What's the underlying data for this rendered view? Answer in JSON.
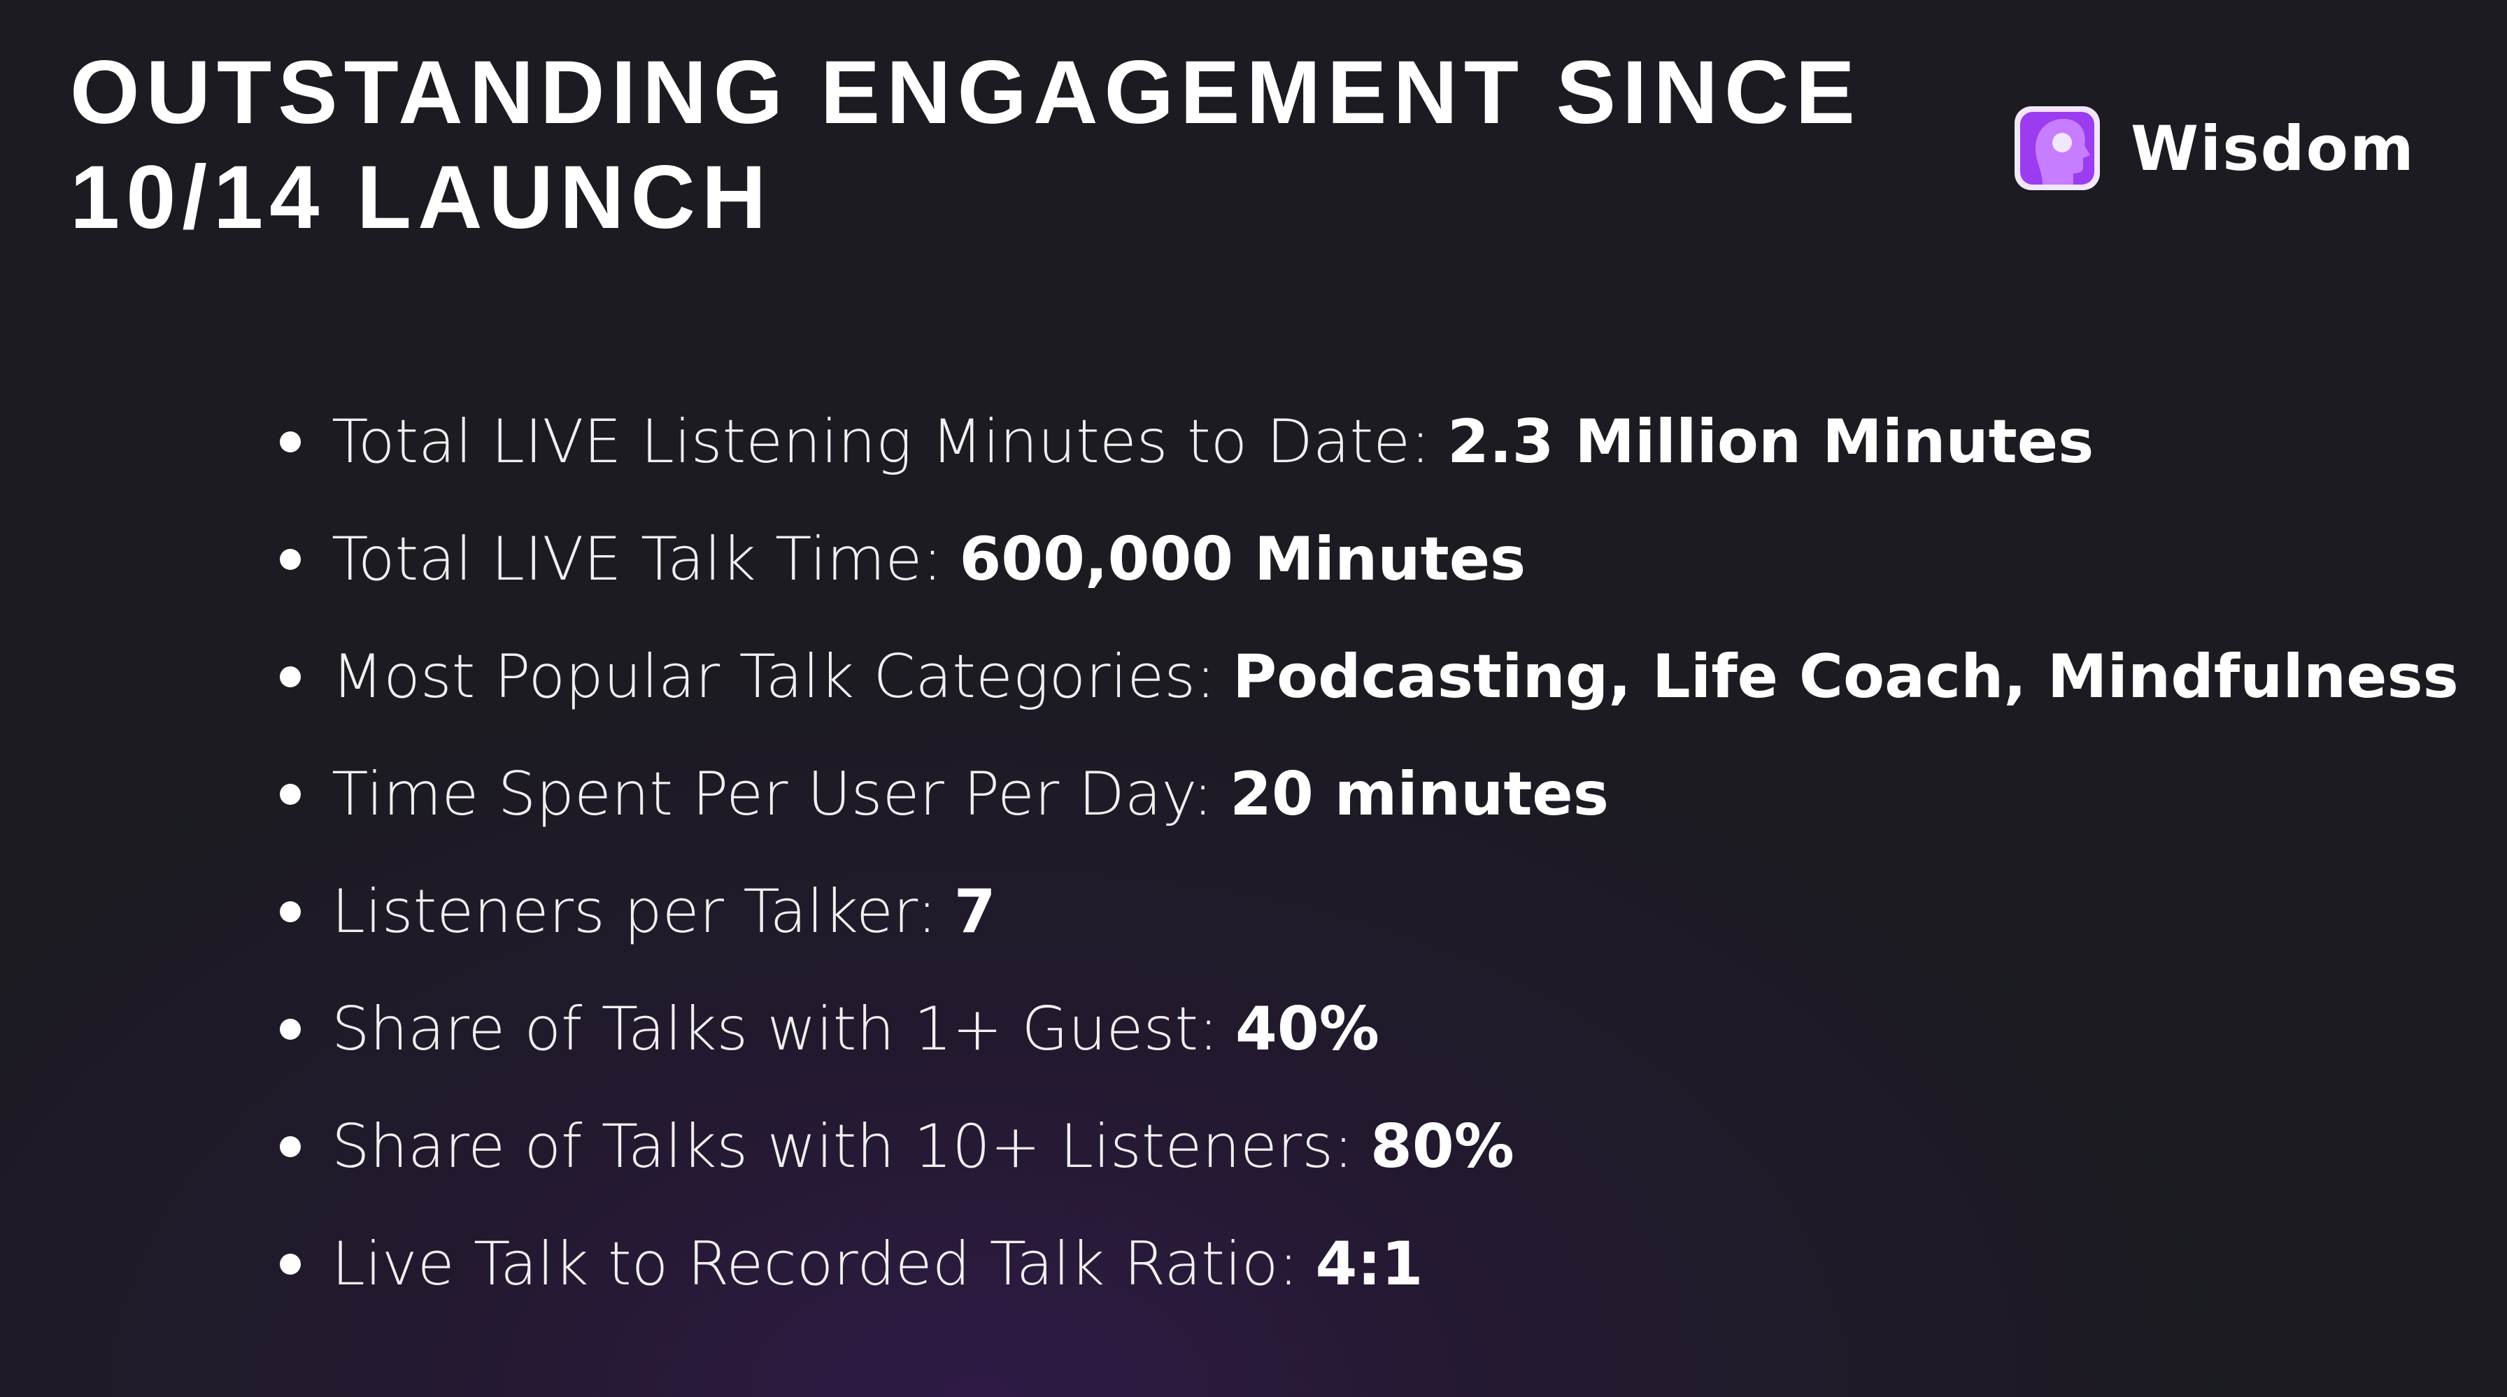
{
  "header": {
    "title_lines": [
      "OUTSTANDING ENGAGEMENT SINCE",
      "10/14 LAUNCH"
    ],
    "logo_text": "Wisdom"
  },
  "stats": [
    {
      "label": "Total LIVE Listening Minutes to Date:",
      "value": "2.3 Million Minutes"
    },
    {
      "label": "Total LIVE Talk Time:",
      "value": "600,000 Minutes"
    },
    {
      "label": "Most Popular Talk Categories:",
      "value": "Podcasting, Life Coach, Mindfulness"
    },
    {
      "label": "Time Spent Per User Per Day:",
      "value": "20 minutes"
    },
    {
      "label": "Listeners per Talker:",
      "value": "7"
    },
    {
      "label": "Share of Talks with 1+ Guest:",
      "value": "40%"
    },
    {
      "label": "Share of Talks with 10+ Listeners:",
      "value": "80%"
    },
    {
      "label": "Live Talk to Recorded Talk Ratio:",
      "value": "4:1"
    }
  ]
}
